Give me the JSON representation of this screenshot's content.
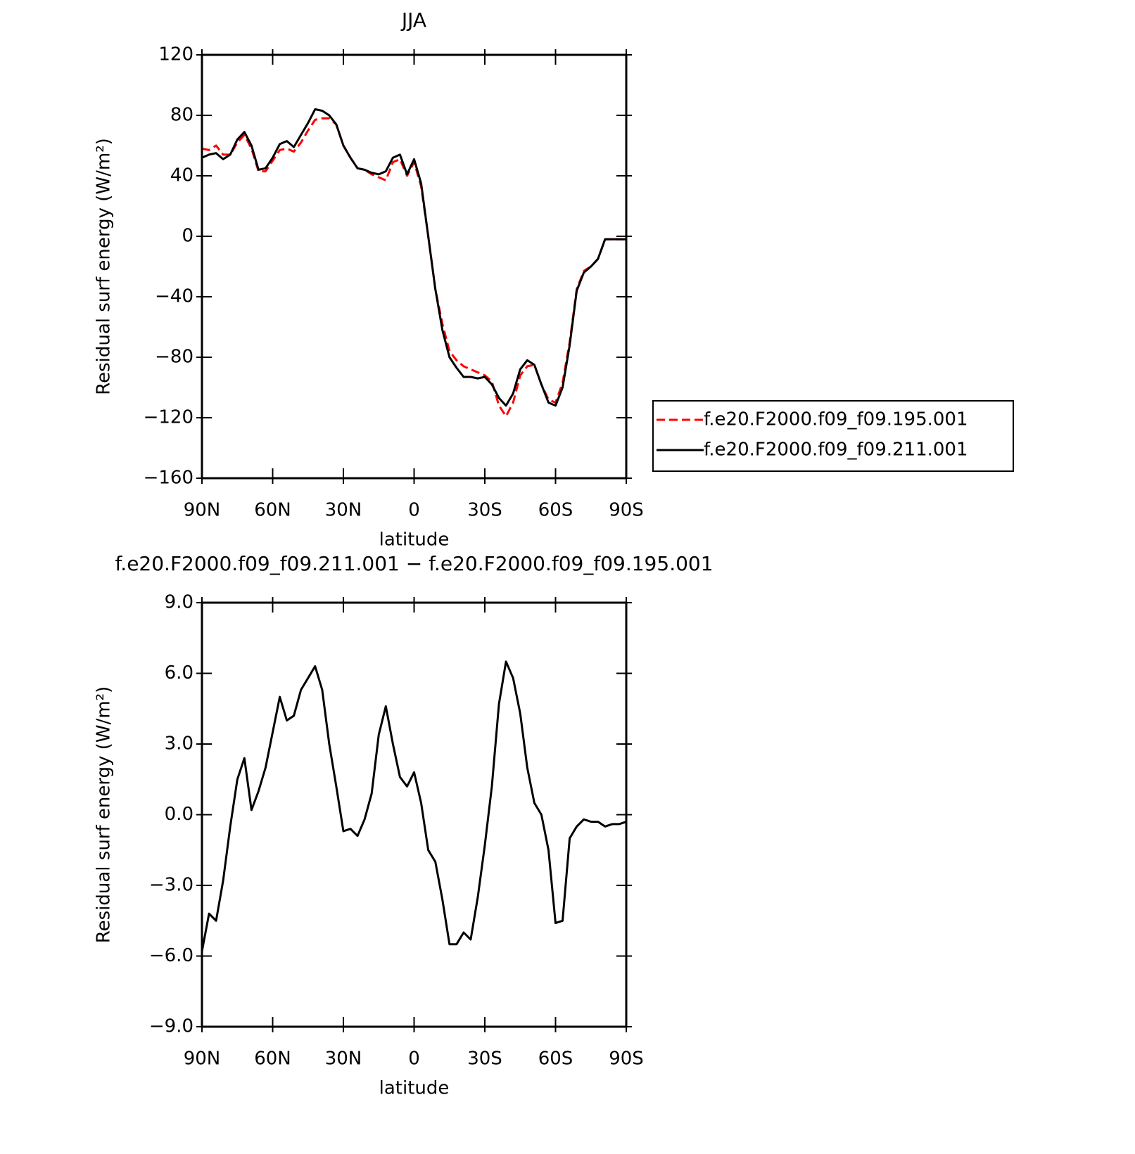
{
  "chart_data": [
    {
      "type": "line",
      "title": "JJA",
      "xlabel": "latitude",
      "ylabel": "Residual surf energy (W/m²)",
      "x": [
        90,
        87,
        84,
        81,
        78,
        75,
        72,
        69,
        66,
        63,
        60,
        57,
        54,
        51,
        48,
        45,
        42,
        39,
        36,
        33,
        30,
        27,
        24,
        21,
        18,
        15,
        12,
        9,
        6,
        3,
        0,
        -3,
        -6,
        -9,
        -12,
        -15,
        -18,
        -21,
        -24,
        -27,
        -30,
        -33,
        -36,
        -39,
        -42,
        -45,
        -48,
        -51,
        -54,
        -57,
        -60,
        -63,
        -66,
        -69,
        -72,
        -75,
        -78,
        -81,
        -84,
        -87,
        -90
      ],
      "series": [
        {
          "name": "f.e20.F2000.f09_f09.195.001",
          "color": "#ff0000",
          "style": "dashed",
          "values": [
            58,
            57,
            60,
            54,
            54,
            62,
            67,
            58,
            43,
            43,
            50,
            57,
            58,
            56,
            62,
            70,
            77,
            78,
            78,
            74,
            60,
            52,
            45,
            44,
            41,
            39,
            37,
            49,
            51,
            40,
            49,
            33,
            0,
            -35,
            -58,
            -76,
            -82,
            -86,
            -88,
            -90,
            -92,
            -96,
            -112,
            -119,
            -110,
            -92,
            -86,
            -85,
            -98,
            -108,
            -110,
            -97,
            -70,
            -35,
            -23,
            -20,
            -15,
            -2,
            -2,
            -2,
            -2
          ]
        },
        {
          "name": "f.e20.F2000.f09_f09.211.001",
          "color": "#000000",
          "style": "solid",
          "values": [
            52,
            54,
            55,
            51,
            54,
            64,
            69,
            60,
            44,
            45,
            52,
            61,
            63,
            59,
            67,
            75,
            84,
            83,
            80,
            74,
            60,
            52,
            45,
            44,
            42,
            41,
            43,
            52,
            54,
            41,
            51,
            35,
            0,
            -35,
            -62,
            -80,
            -87,
            -93,
            -93,
            -94,
            -93,
            -98,
            -107,
            -112,
            -104,
            -88,
            -82,
            -85,
            -98,
            -110,
            -112,
            -100,
            -72,
            -36,
            -24,
            -20,
            -15,
            -2,
            -2,
            -2,
            -2
          ]
        }
      ],
      "xlim": [
        90,
        -90
      ],
      "xticks": [
        {
          "value": 90,
          "label": "90N"
        },
        {
          "value": 60,
          "label": "60N"
        },
        {
          "value": 30,
          "label": "30N"
        },
        0,
        {
          "value": -30,
          "label": "30S"
        },
        {
          "value": -60,
          "label": "60S"
        },
        {
          "value": -90,
          "label": "90S"
        }
      ],
      "ylim": [
        -160,
        120
      ],
      "yticks": [
        {
          "value": -160,
          "label": "−160"
        },
        {
          "value": -120,
          "label": "−120"
        },
        {
          "value": -80,
          "label": "−80"
        },
        {
          "value": -40,
          "label": "−40"
        },
        0,
        40,
        80,
        120
      ],
      "legend": "right"
    },
    {
      "type": "line",
      "title": "f.e20.F2000.f09_f09.211.001 − f.e20.F2000.f09_f09.195.001",
      "xlabel": "latitude",
      "ylabel": "Residual surf energy (W/m²)",
      "x": [
        90,
        87,
        84,
        81,
        78,
        75,
        72,
        69,
        66,
        63,
        60,
        57,
        54,
        51,
        48,
        45,
        42,
        39,
        36,
        33,
        30,
        27,
        24,
        21,
        18,
        15,
        12,
        9,
        6,
        3,
        0,
        -3,
        -6,
        -9,
        -12,
        -15,
        -18,
        -21,
        -24,
        -27,
        -30,
        -33,
        -36,
        -39,
        -42,
        -45,
        -48,
        -51,
        -54,
        -57,
        -60,
        -63,
        -66,
        -69,
        -72,
        -75,
        -78,
        -81,
        -84,
        -87,
        -90
      ],
      "series": [
        {
          "color": "#000000",
          "style": "solid",
          "values": [
            -5.8,
            -4.2,
            -4.5,
            -2.8,
            -0.5,
            1.5,
            2.4,
            0.2,
            1.0,
            2.0,
            3.5,
            5.0,
            4.0,
            4.2,
            5.3,
            5.8,
            6.3,
            5.3,
            3.0,
            1.2,
            -0.7,
            -0.6,
            -0.9,
            -0.2,
            0.9,
            3.4,
            4.6,
            3.0,
            1.6,
            1.2,
            1.8,
            0.5,
            -1.5,
            -2.0,
            -3.6,
            -5.5,
            -5.5,
            -5.0,
            -5.3,
            -3.5,
            -1.3,
            1.2,
            4.7,
            6.5,
            5.8,
            4.3,
            2.0,
            0.5,
            0.0,
            -1.5,
            -4.6,
            -4.5,
            -1.0,
            -0.5,
            -0.2,
            -0.3,
            -0.3,
            -0.5,
            -0.4,
            -0.4,
            -0.3
          ]
        }
      ],
      "xlim": [
        90,
        -90
      ],
      "xticks": [
        {
          "value": 90,
          "label": "90N"
        },
        {
          "value": 60,
          "label": "60N"
        },
        {
          "value": 30,
          "label": "30N"
        },
        0,
        {
          "value": -30,
          "label": "30S"
        },
        {
          "value": -60,
          "label": "60S"
        },
        {
          "value": -90,
          "label": "90S"
        }
      ],
      "ylim": [
        -9,
        9
      ],
      "yticks": [
        {
          "value": -9,
          "label": "−9.0"
        },
        {
          "value": -6,
          "label": "−6.0"
        },
        {
          "value": -3,
          "label": "−3.0"
        },
        {
          "value": 0,
          "label": "0.0"
        },
        {
          "value": 3,
          "label": "3.0"
        },
        {
          "value": 6,
          "label": "6.0"
        },
        {
          "value": 9,
          "label": "9.0"
        }
      ]
    }
  ]
}
